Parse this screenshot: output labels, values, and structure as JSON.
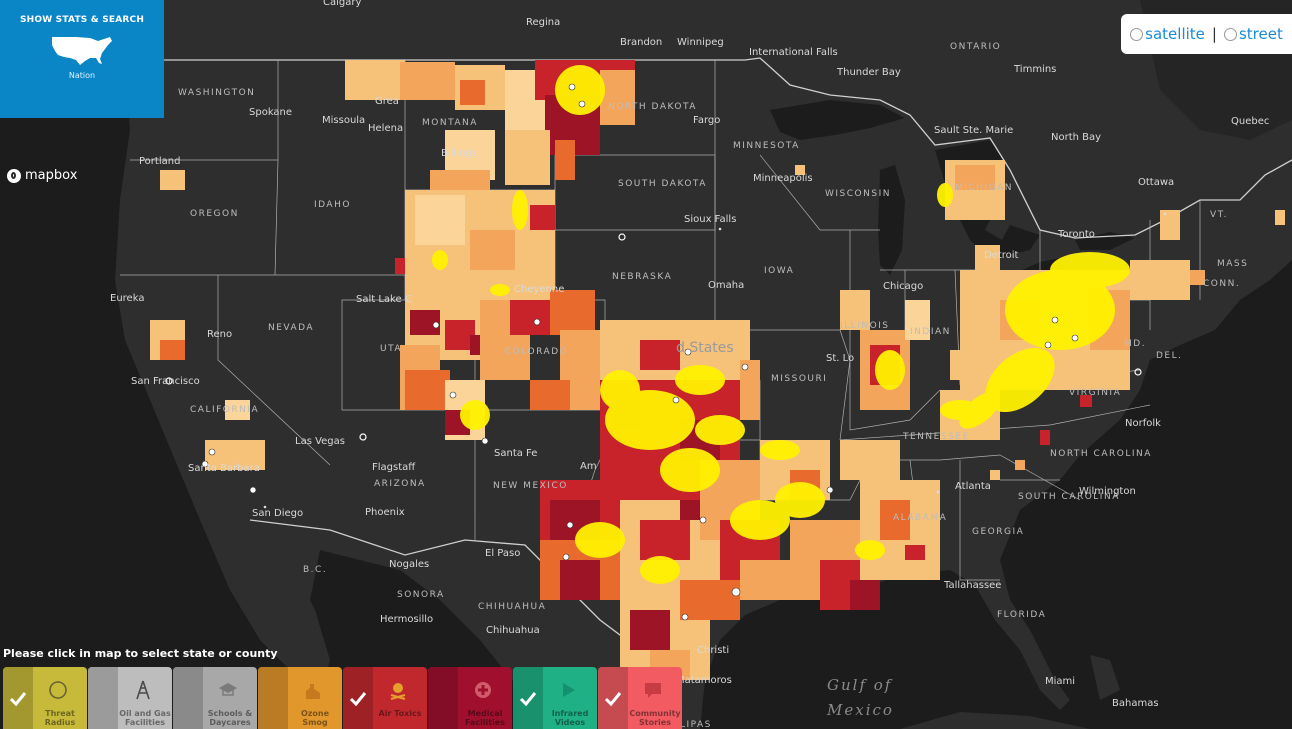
{
  "stats_panel": {
    "title": "SHOW STATS & SEARCH",
    "subtitle": "Nation",
    "icon": "us-map-icon"
  },
  "branding": {
    "logo_text": "mapbox"
  },
  "style_toggle": {
    "satellite_label": "satellite",
    "separator": "|",
    "street_label": "street"
  },
  "instructions": "Please click in map to select state or county",
  "map": {
    "country_label": "d States",
    "cities": {
      "calgary": "Calgary",
      "regina": "Regina",
      "brandon": "Brandon",
      "winnipeg": "Winnipeg",
      "international_falls": "International Falls",
      "thunder_bay": "Thunder Bay",
      "timmins": "Timmins",
      "sault": "Sault Ste. Marie",
      "north_bay": "North Bay",
      "quebec": "Quebec",
      "ottawa": "Ottawa",
      "toronto": "Toronto",
      "spokane": "Spokane",
      "missoula": "Missoula",
      "helena": "Helena",
      "great_falls": "Grea",
      "billings": "Billings",
      "portland": "Portland",
      "fargo": "Fargo",
      "minneapolis": "Minneapolis",
      "sioux_falls": "Sioux Falls",
      "eureka": "Eureka",
      "reno": "Reno",
      "salt_lake": "Salt Lake C",
      "cheyenne": "Cheyenne",
      "omaha": "Omaha",
      "chicago": "Chicago",
      "detroit": "Detroit",
      "san_francisco": "San Francisco",
      "las_vegas": "Las Vegas",
      "santa_fe": "Santa Fe",
      "st_louis": "St. Lo",
      "norfolk": "Norfolk",
      "flagstaff": "Flagstaff",
      "santa_barbara": "Santa Barbara",
      "phoenix": "Phoenix",
      "san_diego": "San Diego",
      "albuquerque": "Am",
      "atlanta": "Atlanta",
      "wilmington": "Wilmington",
      "el_paso": "El Paso",
      "nogales": "Nogales",
      "hermosillo": "Hermosillo",
      "chihuahua": "Chihuahua",
      "tallahassee": "Tallahassee",
      "corpus_christi": "Christi",
      "matamoros": "Matamoros",
      "miami": "Miami",
      "bahamas": "Bahamas"
    },
    "regions": {
      "ontario": "ONTARIO",
      "washington": "WASHINGTON",
      "montana": "MONTANA",
      "north_dakota": "NORTH DAKOTA",
      "minnesota": "MINNESOTA",
      "wisconsin": "WISCONSIN",
      "michigan": "MICHIGAN",
      "south_dakota": "SOUTH DAKOTA",
      "oregon": "OREGON",
      "idaho": "IDAHO",
      "nebraska": "NEBRASKA",
      "iowa": "IOWA",
      "nevada": "NEVADA",
      "utah": "UTA",
      "colorado": "COLORADO",
      "illinois": "ILLINOIS",
      "indiana": "INDIAN",
      "missouri": "MISSOURI",
      "california": "CALIFORNIA",
      "new_mexico": "NEW MEXICO",
      "arizona": "ARIZONA",
      "virginia": "VIRGINIA",
      "north_carolina": "NORTH CAROLINA",
      "south_carolina": "SOUTH CAROLINA",
      "tennessee": "TENNESSEE",
      "georgia": "GEORGIA",
      "alabama": "ALABAMA",
      "florida": "FLORIDA",
      "bc": "B.C.",
      "sonora": "SONORA",
      "chihuahua_state": "CHIHUAHUA",
      "tamaulipas": "MAULIPAS",
      "vermont": "VT.",
      "mass": "MASS",
      "conn": "CONN.",
      "md": "MD.",
      "del": "DEL."
    },
    "water": {
      "gulf_of": "Gulf of",
      "mexico": "Mexico"
    }
  },
  "layers": [
    {
      "label_1": "Threat",
      "label_2": "Radius",
      "icon": "threat-radius-icon",
      "checked": true,
      "color": "#c7b93a"
    },
    {
      "label_1": "Oil and Gas",
      "label_2": "Facilities",
      "icon": "oil-gas-derrick-icon",
      "checked": false,
      "color": "#bdbdbd"
    },
    {
      "label_1": "Schools &",
      "label_2": "Daycares",
      "icon": "school-icon",
      "checked": false,
      "color": "#a8a8a8"
    },
    {
      "label_1": "Ozone",
      "label_2": "Smog",
      "icon": "ozone-smog-icon",
      "checked": false,
      "color": "#e2972d"
    },
    {
      "label_1": "Air Toxics",
      "label_2": "",
      "icon": "skull-crossbones-icon",
      "checked": true,
      "color": "#c0282d"
    },
    {
      "label_1": "Medical",
      "label_2": "Facilities",
      "icon": "medical-cross-icon",
      "checked": false,
      "color": "#a0102e"
    },
    {
      "label_1": "Infrared",
      "label_2": "Videos",
      "icon": "play-icon",
      "checked": true,
      "color": "#1fb185"
    },
    {
      "label_1": "Community",
      "label_2": "Stories",
      "icon": "speech-bubble-icon",
      "checked": true,
      "color": "#f15b61"
    }
  ]
}
